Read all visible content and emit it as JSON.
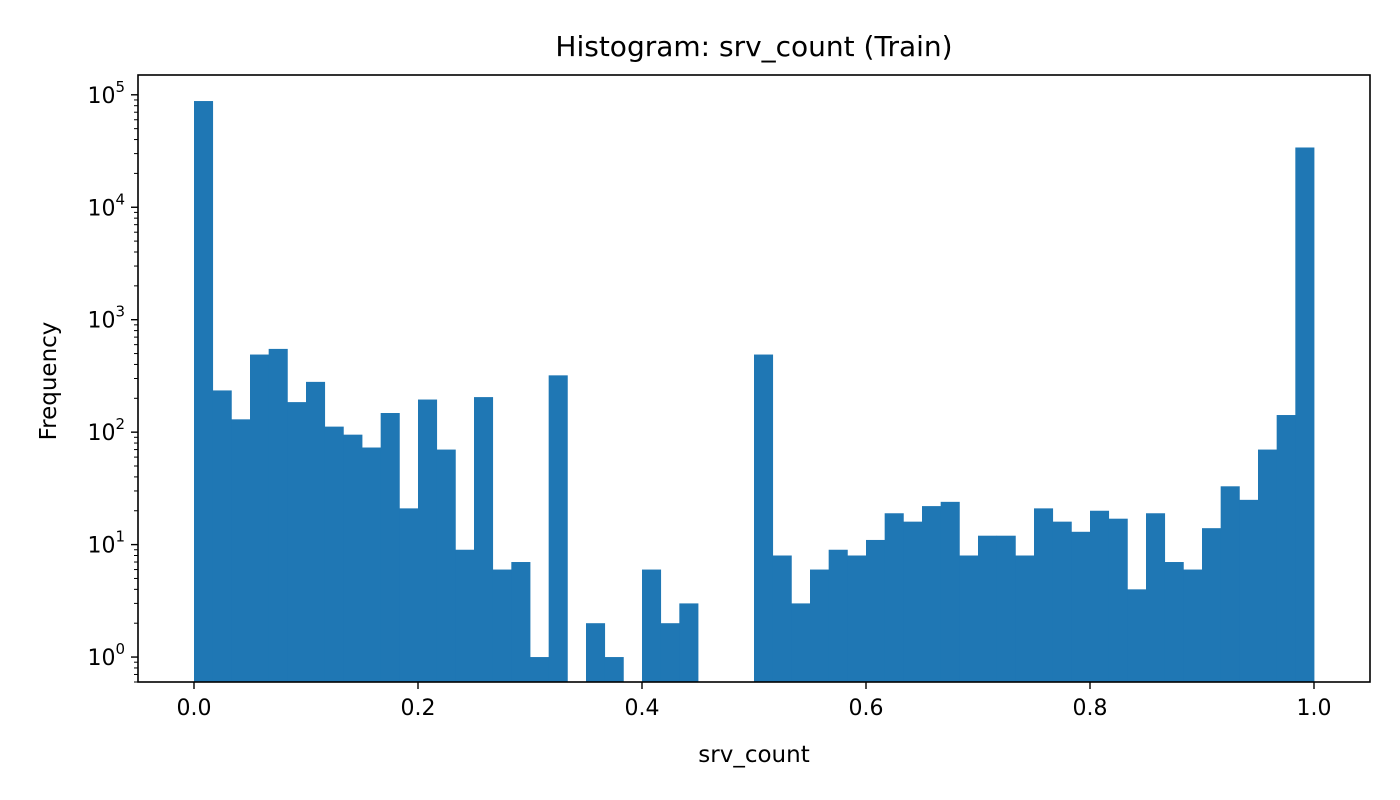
{
  "chart_data": {
    "type": "bar",
    "title": "Histogram: srv_count (Train)",
    "xlabel": "srv_count",
    "ylabel": "Frequency",
    "y_scale": "log",
    "xlim": [
      -0.05,
      1.05
    ],
    "ylim": [
      0.6,
      150000
    ],
    "grid": false,
    "bar_color": "#1f77b4",
    "x_ticks": [
      {
        "value": 0.0,
        "label": "0.0"
      },
      {
        "value": 0.2,
        "label": "0.2"
      },
      {
        "value": 0.4,
        "label": "0.4"
      },
      {
        "value": 0.6,
        "label": "0.6"
      },
      {
        "value": 0.8,
        "label": "0.8"
      },
      {
        "value": 1.0,
        "label": "1.0"
      }
    ],
    "y_ticks": [
      {
        "value": 1,
        "base": "10",
        "exponent": "0"
      },
      {
        "value": 10,
        "base": "10",
        "exponent": "1"
      },
      {
        "value": 100,
        "base": "10",
        "exponent": "2"
      },
      {
        "value": 1000,
        "base": "10",
        "exponent": "3"
      },
      {
        "value": 10000,
        "base": "10",
        "exponent": "4"
      },
      {
        "value": 100000,
        "base": "10",
        "exponent": "5"
      }
    ],
    "bin_start": 0.0,
    "bin_end": 1.0,
    "counts": [
      88000,
      235,
      130,
      490,
      550,
      185,
      280,
      112,
      95,
      73,
      148,
      21,
      195,
      70,
      9,
      205,
      6,
      7,
      1,
      320,
      0,
      2,
      1,
      0,
      6,
      2,
      3,
      0,
      0,
      0,
      490,
      8,
      3,
      6,
      9,
      8,
      11,
      19,
      16,
      22,
      24,
      8,
      12,
      12,
      8,
      21,
      16,
      13,
      20,
      17,
      4,
      19,
      7,
      6,
      14,
      33,
      25,
      70,
      142,
      34000
    ]
  }
}
